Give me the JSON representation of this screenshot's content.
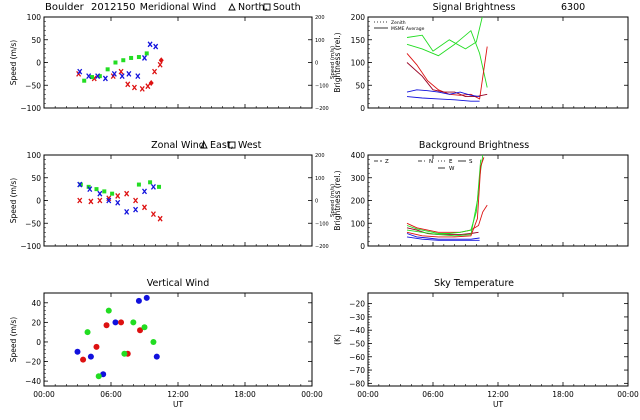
{
  "header": {
    "site": "Boulder",
    "date": "2012150"
  },
  "colors": {
    "red": "#dd1111",
    "green": "#22dd22",
    "blue": "#1111dd",
    "maroon": "#990022",
    "black": "#000000"
  },
  "chart_data": [
    {
      "id": "meridional",
      "type": "scatter",
      "title": "Meridional Wind",
      "legend_items": [
        {
          "symbol": "triangle",
          "label": "North,"
        },
        {
          "symbol": "square",
          "label": "South"
        }
      ],
      "ylabel": "Speed (m/s)",
      "ylabel_right": "Speed (m/s)",
      "ylim": [
        -100,
        100
      ],
      "yticks": [
        -100,
        -50,
        0,
        50,
        100
      ],
      "ylim_right": [
        -200,
        200
      ],
      "yticks_right": [
        -200,
        -100,
        0,
        100,
        200
      ],
      "xlim": [
        0,
        24
      ],
      "series": [
        {
          "name": "red",
          "color": "red",
          "marker": "x",
          "x": [
            3.1,
            4.5,
            6.2,
            6.9,
            7.5,
            8.1,
            8.8,
            9.3,
            9.9,
            10.4
          ],
          "y": [
            -25,
            -35,
            -30,
            -20,
            -48,
            -55,
            -58,
            -52,
            -20,
            -5
          ]
        },
        {
          "name": "red-diamond",
          "color": "red",
          "marker": "diamond",
          "x": [
            9.6,
            10.5
          ],
          "y": [
            -45,
            5
          ]
        },
        {
          "name": "green",
          "color": "green",
          "marker": "square",
          "x": [
            3.6,
            4.3,
            5.0,
            5.7,
            6.4,
            7.1,
            7.8,
            8.5,
            9.2
          ],
          "y": [
            -40,
            -32,
            -30,
            -15,
            0,
            5,
            10,
            12,
            20
          ]
        },
        {
          "name": "blue",
          "color": "blue",
          "marker": "x",
          "x": [
            3.2,
            4.0,
            4.8,
            5.5,
            6.3,
            7.0,
            7.6,
            8.4,
            9.0,
            9.5,
            10.0
          ],
          "y": [
            -20,
            -30,
            -30,
            -35,
            -25,
            -30,
            -25,
            -30,
            10,
            40,
            35
          ]
        }
      ]
    },
    {
      "id": "signal",
      "type": "line",
      "title": "Signal Brightness",
      "title_extra": "6300",
      "legend_items": [
        {
          "style": "dotted",
          "label": "Zenith"
        },
        {
          "style": "solid",
          "label": "MSME Average"
        }
      ],
      "ylabel": "Brightness (rel.)",
      "ylim": [
        0,
        200
      ],
      "yticks": [
        0,
        50,
        100,
        150,
        200
      ],
      "xlim": [
        0,
        24
      ],
      "series": [
        {
          "name": "green1",
          "color": "green",
          "x": [
            3.6,
            5.0,
            6.5,
            8.0,
            9.5,
            10.3,
            11.0
          ],
          "y": [
            140,
            130,
            115,
            140,
            170,
            120,
            45
          ]
        },
        {
          "name": "green2",
          "color": "green",
          "x": [
            3.6,
            5.0,
            6.0,
            7.5,
            9.0,
            10.0,
            10.6
          ],
          "y": [
            155,
            160,
            125,
            150,
            130,
            145,
            205
          ]
        },
        {
          "name": "red1",
          "color": "red",
          "x": [
            3.6,
            4.5,
            5.5,
            6.5,
            7.5,
            8.5,
            9.5,
            10.3,
            11.0
          ],
          "y": [
            120,
            95,
            60,
            40,
            30,
            28,
            30,
            20,
            135
          ]
        },
        {
          "name": "maroon1",
          "color": "maroon",
          "x": [
            3.6,
            5.0,
            6.0,
            7.0,
            8.0,
            9.0,
            10.0,
            11.0
          ],
          "y": [
            100,
            70,
            40,
            35,
            35,
            25,
            25,
            30
          ]
        },
        {
          "name": "blue1",
          "color": "blue",
          "x": [
            3.6,
            4.5,
            5.5,
            6.5,
            7.5,
            8.5,
            9.5,
            10.3
          ],
          "y": [
            35,
            40,
            38,
            35,
            30,
            35,
            28,
            25
          ]
        },
        {
          "name": "blue2",
          "color": "blue",
          "x": [
            3.6,
            5.0,
            6.5,
            8.0,
            9.5,
            10.3
          ],
          "y": [
            25,
            22,
            20,
            18,
            15,
            15
          ]
        }
      ]
    },
    {
      "id": "zonal",
      "type": "scatter",
      "title": "Zonal Wind",
      "legend_items": [
        {
          "symbol": "triangle",
          "label": "East,"
        },
        {
          "symbol": "square",
          "label": "West"
        }
      ],
      "ylabel": "Speed (m/s)",
      "ylabel_right": "Speed (m/s)",
      "ylim": [
        -100,
        100
      ],
      "yticks": [
        -100,
        -50,
        0,
        50,
        100
      ],
      "ylim_right": [
        -200,
        200
      ],
      "yticks_right": [
        -200,
        -100,
        0,
        100,
        200
      ],
      "xlim": [
        0,
        24
      ],
      "series": [
        {
          "name": "red",
          "color": "red",
          "marker": "x",
          "x": [
            3.2,
            4.2,
            5.0,
            5.8,
            6.6,
            7.4,
            8.2,
            9.0,
            9.8,
            10.4
          ],
          "y": [
            0,
            -2,
            0,
            5,
            10,
            15,
            0,
            -15,
            -30,
            -40
          ]
        },
        {
          "name": "green",
          "color": "green",
          "marker": "square",
          "x": [
            3.3,
            4.0,
            4.7,
            5.4,
            6.1,
            8.5,
            9.5,
            10.3
          ],
          "y": [
            35,
            30,
            25,
            20,
            15,
            35,
            40,
            30
          ]
        },
        {
          "name": "blue",
          "color": "blue",
          "marker": "x",
          "x": [
            3.2,
            4.1,
            5.0,
            5.8,
            6.6,
            7.4,
            8.2,
            9.0,
            9.8
          ],
          "y": [
            35,
            25,
            15,
            0,
            -5,
            -25,
            -20,
            20,
            30
          ]
        }
      ]
    },
    {
      "id": "background",
      "type": "line",
      "title": "Background Brightness",
      "legend_items": [
        {
          "style": "dash",
          "label": "Z"
        },
        {
          "style": "dashdot",
          "label": "N"
        },
        {
          "style": "dotted",
          "label": "E"
        },
        {
          "style": "solid",
          "label": "S"
        },
        {
          "style": "longdash",
          "label": "W"
        }
      ],
      "ylabel": "Brightness (rel.)",
      "ylim": [
        0,
        400
      ],
      "yticks": [
        0,
        100,
        200,
        300,
        400
      ],
      "xlim": [
        0,
        24
      ],
      "series": [
        {
          "name": "red1",
          "color": "red",
          "x": [
            3.6,
            4.5,
            5.5,
            6.5,
            7.5,
            8.5,
            9.5,
            10.2,
            10.6,
            11.0
          ],
          "y": [
            100,
            80,
            70,
            60,
            60,
            60,
            70,
            90,
            150,
            180
          ]
        },
        {
          "name": "maroon1",
          "color": "maroon",
          "x": [
            3.6,
            4.5,
            5.5,
            6.5,
            7.5,
            8.5,
            9.5,
            10.2
          ],
          "y": [
            80,
            70,
            55,
            50,
            50,
            50,
            55,
            60
          ]
        },
        {
          "name": "green1",
          "color": "green",
          "x": [
            3.6,
            4.5,
            5.5,
            6.5,
            7.5,
            8.5,
            9.5,
            10.0,
            10.3,
            10.6
          ],
          "y": [
            90,
            75,
            65,
            55,
            55,
            60,
            70,
            150,
            300,
            400
          ]
        },
        {
          "name": "green2",
          "color": "green",
          "x": [
            3.6,
            5.0,
            6.5,
            8.0,
            9.5,
            10.1,
            10.4
          ],
          "y": [
            70,
            60,
            50,
            45,
            50,
            200,
            380
          ]
        },
        {
          "name": "red2",
          "color": "red",
          "x": [
            3.6,
            5.0,
            6.5,
            8.0,
            9.5,
            10.1,
            10.4,
            10.7
          ],
          "y": [
            60,
            45,
            40,
            40,
            45,
            120,
            350,
            390
          ]
        },
        {
          "name": "blue1",
          "color": "blue",
          "x": [
            3.6,
            4.5,
            5.5,
            6.5,
            7.5,
            8.5,
            9.5,
            10.3
          ],
          "y": [
            55,
            40,
            35,
            30,
            30,
            30,
            30,
            35
          ]
        },
        {
          "name": "blue2",
          "color": "blue",
          "x": [
            3.6,
            5.0,
            6.5,
            8.0,
            9.5,
            10.3
          ],
          "y": [
            40,
            30,
            25,
            25,
            25,
            25
          ]
        }
      ]
    },
    {
      "id": "vertical",
      "type": "scatter",
      "title": "Vertical Wind",
      "ylabel": "Speed (m/s)",
      "ylim": [
        -45,
        50
      ],
      "yticks": [
        -40,
        -20,
        0,
        20,
        40
      ],
      "xlim": [
        0,
        24
      ],
      "xlabel": "UT",
      "xtick_labels": [
        "00:00",
        "06:00",
        "12:00",
        "18:00",
        "00:00"
      ],
      "series": [
        {
          "name": "blue",
          "color": "blue",
          "marker": "dot",
          "x": [
            3.0,
            4.2,
            5.3,
            6.4,
            8.5,
            9.2,
            10.1
          ],
          "y": [
            -10,
            -15,
            -33,
            20,
            42,
            45,
            -15
          ]
        },
        {
          "name": "red",
          "color": "red",
          "marker": "dot",
          "x": [
            3.5,
            4.7,
            5.6,
            6.9,
            7.5,
            8.6
          ],
          "y": [
            -18,
            -5,
            17,
            20,
            -12,
            12
          ]
        },
        {
          "name": "green",
          "color": "green",
          "marker": "dot",
          "x": [
            3.9,
            4.9,
            5.8,
            7.2,
            8.0,
            9.0,
            9.8
          ],
          "y": [
            10,
            -35,
            32,
            -12,
            20,
            15,
            0
          ]
        }
      ]
    },
    {
      "id": "sky",
      "type": "line",
      "title": "Sky Temperature",
      "ylabel": "(K)",
      "ylim": [
        -82,
        -12
      ],
      "yticks": [
        -80,
        -70,
        -60,
        -50,
        -40,
        -30,
        -20
      ],
      "xlim": [
        0,
        24
      ],
      "xlabel": "UT",
      "xtick_labels": [
        "00:00",
        "06:00",
        "12:00",
        "18:00",
        "00:00"
      ],
      "series": []
    }
  ]
}
